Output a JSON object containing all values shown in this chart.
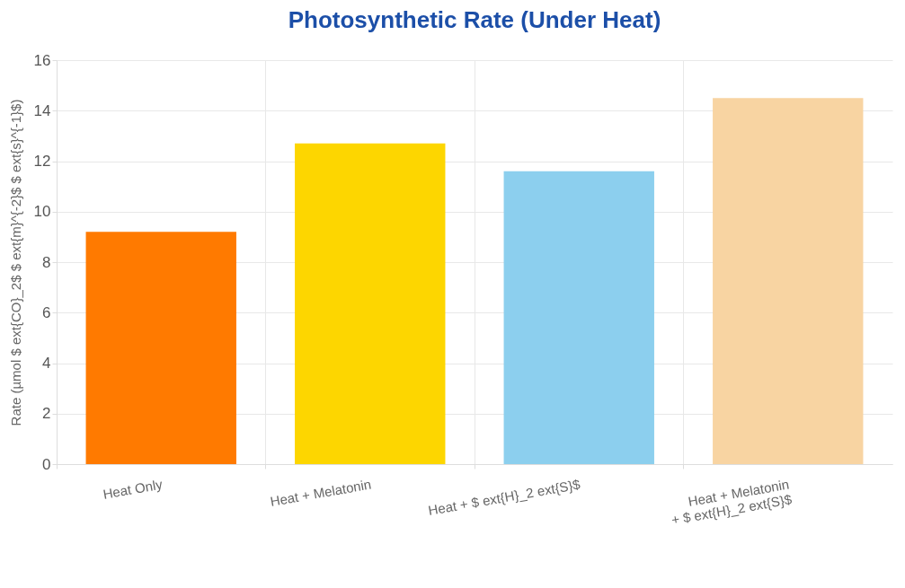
{
  "chart_data": {
    "type": "bar",
    "title": "Photosynthetic Rate (Under Heat)",
    "ylabel": "Rate (µmol $ ext{CO}_2$ $ ext{m}^{-2}$ $ ext{s}^{-1}$)",
    "categories": [
      "Heat Only",
      "Heat + Melatonin",
      "Heat + $ ext{H}_2 ext{S}$",
      "Heat + Melatonin\n+ $ ext{H}_2 ext{S}$"
    ],
    "values": [
      9.2,
      12.7,
      11.6,
      14.5
    ],
    "colors": [
      "#ff7a00",
      "#fdd600",
      "#8ccfee",
      "#f8d4a2"
    ],
    "ylim": [
      0,
      16
    ],
    "yticks": [
      0,
      2,
      4,
      6,
      8,
      10,
      12,
      14,
      16
    ],
    "grid": true
  }
}
